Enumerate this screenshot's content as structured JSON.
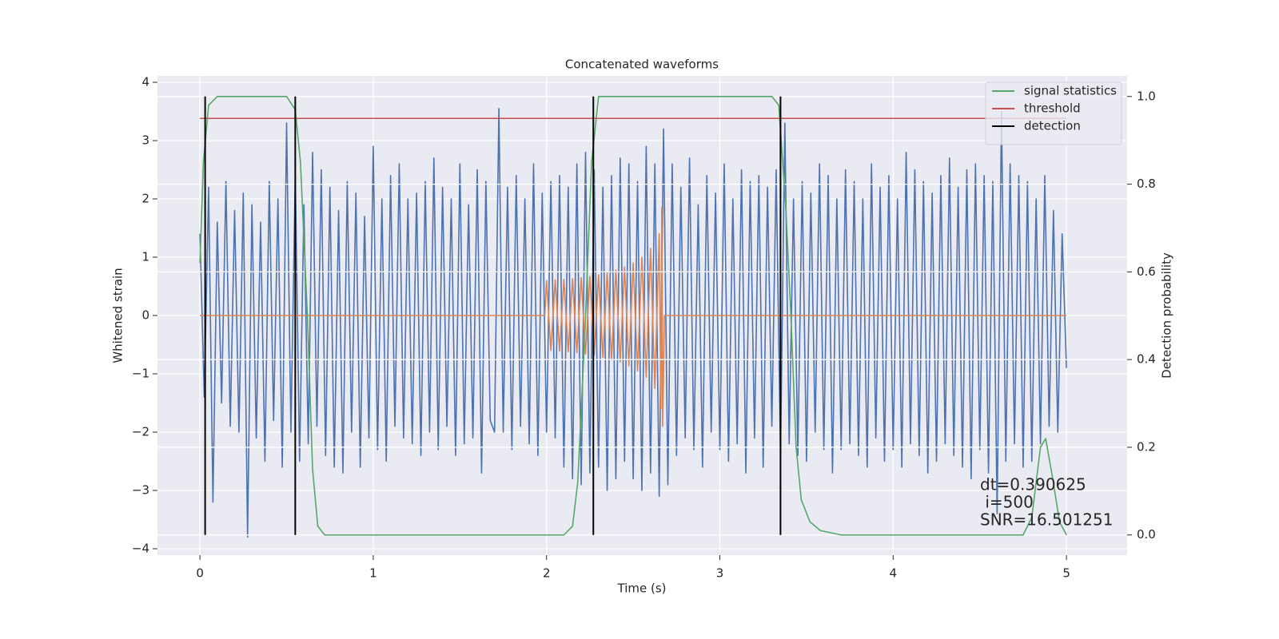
{
  "chart_data": {
    "type": "line",
    "title": "Concatenated waveforms",
    "x_label": "Time (s)",
    "y_label": "Whitened strain",
    "y2_label": "Detection probability",
    "xlim": [
      -0.245,
      5.35
    ],
    "ylim": [
      -4.11,
      4.11
    ],
    "y2lim": [
      -0.046,
      1.047
    ],
    "xticks": [
      0,
      1,
      2,
      3,
      4,
      5
    ],
    "yticks": [
      {
        "value": -4,
        "label": "−4"
      },
      {
        "value": -3,
        "label": "−3"
      },
      {
        "value": -2,
        "label": "−2"
      },
      {
        "value": -1,
        "label": "−1"
      },
      0,
      1,
      2,
      3,
      4
    ],
    "y2ticks": [
      {
        "value": 0,
        "label": "0.0"
      },
      0.2,
      0.4,
      0.6,
      0.8,
      {
        "value": 1,
        "label": "1.0"
      }
    ],
    "grid": true,
    "legend": "upper right",
    "series": [
      {
        "color": "#4c72b0",
        "x": [
          0,
          0.025,
          0.05,
          0.075,
          0.1,
          0.125,
          0.15,
          0.175,
          0.2,
          0.225,
          0.25,
          0.275,
          0.3,
          0.325,
          0.35,
          0.375,
          0.4,
          0.425,
          0.45,
          0.475,
          0.5,
          0.525,
          0.55,
          0.575,
          0.6,
          0.625,
          0.65,
          0.675,
          0.7,
          0.725,
          0.75,
          0.775,
          0.8,
          0.825,
          0.85,
          0.875,
          0.9,
          0.925,
          0.95,
          0.975,
          1,
          1.025,
          1.05,
          1.075,
          1.1,
          1.125,
          1.15,
          1.175,
          1.2,
          1.225,
          1.25,
          1.275,
          1.3,
          1.325,
          1.35,
          1.375,
          1.4,
          1.425,
          1.45,
          1.475,
          1.5,
          1.525,
          1.55,
          1.575,
          1.6,
          1.625,
          1.65,
          1.675,
          1.7,
          1.725,
          1.75,
          1.775,
          1.8,
          1.825,
          1.85,
          1.875,
          1.9,
          1.925,
          1.95,
          1.975,
          2,
          2.025,
          2.05,
          2.075,
          2.1,
          2.125,
          2.15,
          2.175,
          2.2,
          2.225,
          2.25,
          2.275,
          2.3,
          2.325,
          2.35,
          2.375,
          2.4,
          2.425,
          2.45,
          2.475,
          2.5,
          2.525,
          2.55,
          2.575,
          2.6,
          2.625,
          2.65,
          2.675,
          2.7,
          2.725,
          2.75,
          2.775,
          2.8,
          2.825,
          2.85,
          2.875,
          2.9,
          2.925,
          2.95,
          2.975,
          3,
          3.025,
          3.05,
          3.075,
          3.1,
          3.125,
          3.15,
          3.175,
          3.2,
          3.225,
          3.25,
          3.275,
          3.3,
          3.325,
          3.35,
          3.375,
          3.4,
          3.425,
          3.45,
          3.475,
          3.5,
          3.525,
          3.55,
          3.575,
          3.6,
          3.625,
          3.65,
          3.675,
          3.7,
          3.725,
          3.75,
          3.775,
          3.8,
          3.825,
          3.85,
          3.875,
          3.9,
          3.925,
          3.95,
          3.975,
          4,
          4.025,
          4.05,
          4.075,
          4.1,
          4.125,
          4.15,
          4.175,
          4.2,
          4.225,
          4.25,
          4.275,
          4.3,
          4.325,
          4.35,
          4.375,
          4.4,
          4.425,
          4.45,
          4.475,
          4.5,
          4.525,
          4.55,
          4.575,
          4.6,
          4.625,
          4.65,
          4.675,
          4.7,
          4.725,
          4.75,
          4.775,
          4.8,
          4.825,
          4.85,
          4.875,
          4.9,
          4.925,
          4.95,
          4.975,
          5
        ],
        "values": [
          1.4,
          -1.4,
          2.2,
          -3.2,
          1.6,
          -1.5,
          2.3,
          -1.9,
          1.8,
          -2.0,
          2.1,
          -3.8,
          1.9,
          -2.1,
          1.6,
          -2.5,
          2.3,
          -1.8,
          2.0,
          -2.6,
          3.3,
          -2.0,
          2.4,
          -2.5,
          1.9,
          -2.2,
          2.8,
          -1.9,
          2.5,
          -2.4,
          2.2,
          -2.6,
          1.8,
          -2.7,
          2.3,
          -2.0,
          2.1,
          -2.6,
          1.7,
          -2.1,
          2.9,
          -2.3,
          2.0,
          -2.5,
          2.4,
          -1.9,
          2.6,
          -2.1,
          2.0,
          -2.2,
          2.1,
          -2.4,
          2.3,
          -2.0,
          2.7,
          -2.3,
          2.2,
          -1.9,
          2.0,
          -2.4,
          2.6,
          -2.2,
          1.9,
          -2.1,
          2.5,
          -2.7,
          2.3,
          -1.8,
          -2.0,
          3.55,
          -2.0,
          2.2,
          -2.3,
          2.4,
          -1.9,
          2.0,
          -2.2,
          2.6,
          -2.4,
          2.1,
          -2.0,
          2.3,
          -2.1,
          2.4,
          -2.6,
          2.2,
          -2.8,
          2.6,
          -2.9,
          2.8,
          -2.7,
          2.5,
          -2.6,
          2.2,
          -3.0,
          2.4,
          -2.8,
          2.7,
          -2.5,
          2.6,
          -2.8,
          2.3,
          -3.0,
          2.9,
          -2.7,
          2.6,
          -3.1,
          3.2,
          -2.9,
          2.6,
          -2.4,
          2.2,
          -2.1,
          2.7,
          -2.3,
          1.9,
          -2.6,
          2.4,
          -2.0,
          2.1,
          -2.3,
          2.6,
          -2.5,
          2.0,
          -2.2,
          2.5,
          -2.7,
          2.3,
          -2.1,
          2.4,
          -2.6,
          2.2,
          -1.9,
          2.5,
          -2.4,
          3.3,
          -2.2,
          2.0,
          -2.4,
          2.3,
          -2.5,
          2.1,
          -2.0,
          2.6,
          -2.3,
          2.4,
          -2.7,
          2.0,
          -2.3,
          2.5,
          -2.2,
          2.3,
          -2.4,
          2.0,
          -2.6,
          2.6,
          -2.1,
          2.2,
          -2.5,
          2.4,
          -2.3,
          2.0,
          -2.6,
          2.8,
          -2.2,
          2.5,
          -2.4,
          2.3,
          -2.7,
          2.1,
          -2.5,
          2.4,
          -2.2,
          2.7,
          -2.4,
          2.2,
          -2.6,
          2.5,
          -2.8,
          2.6,
          -2.3,
          2.4,
          -2.7,
          2.3,
          -3.4,
          3.5,
          -2.5,
          2.6,
          -2.2,
          2.4,
          -2.6,
          2.3,
          -2.5,
          2.0,
          -2.2,
          2.4,
          -1.9,
          1.8,
          -2.0,
          1.4,
          -0.9
        ]
      },
      {
        "color": "#dd8452",
        "x": [
          0,
          1.99,
          2,
          2.025,
          2.05,
          2.075,
          2.1,
          2.125,
          2.15,
          2.175,
          2.2,
          2.225,
          2.25,
          2.275,
          2.3,
          2.325,
          2.35,
          2.375,
          2.4,
          2.425,
          2.45,
          2.475,
          2.5,
          2.525,
          2.55,
          2.575,
          2.6,
          2.625,
          2.65,
          2.66,
          2.665,
          2.67,
          2.68,
          5
        ],
        "values": [
          0,
          0,
          0.6,
          -0.6,
          0.61,
          -0.61,
          0.62,
          -0.62,
          0.63,
          -0.64,
          0.65,
          -0.66,
          0.67,
          -0.68,
          0.7,
          -0.72,
          0.74,
          -0.76,
          0.78,
          -0.8,
          0.83,
          -0.86,
          0.9,
          -0.95,
          1.0,
          -1.06,
          1.15,
          -1.25,
          1.4,
          -1.6,
          1.85,
          -1.9,
          0,
          0
        ]
      },
      {
        "name": "signal statistics",
        "color": "#55a868",
        "axis": "y2",
        "x": [
          0,
          0.02,
          0.05,
          0.1,
          0.5,
          0.55,
          0.58,
          0.62,
          0.65,
          0.68,
          0.72,
          2.1,
          2.15,
          2.18,
          2.22,
          2.26,
          2.3,
          3.3,
          3.34,
          3.38,
          3.41,
          3.44,
          3.47,
          3.52,
          3.58,
          3.7,
          4.75,
          4.8,
          4.85,
          4.88,
          4.92,
          4.96,
          5
        ],
        "values": [
          0.62,
          0.85,
          0.98,
          1.0,
          1.0,
          0.97,
          0.85,
          0.5,
          0.15,
          0.02,
          0.0,
          0.0,
          0.02,
          0.12,
          0.45,
          0.85,
          1.0,
          1.0,
          0.98,
          0.75,
          0.5,
          0.2,
          0.08,
          0.03,
          0.01,
          0.0,
          0.0,
          0.04,
          0.2,
          0.22,
          0.13,
          0.03,
          0.0
        ]
      },
      {
        "name": "threshold",
        "color": "#c44e52",
        "axis": "y2",
        "x": [
          0,
          5
        ],
        "values": [
          0.95,
          0.95
        ]
      }
    ],
    "detection": {
      "name": "detection",
      "color": "#000000",
      "axis": "y2",
      "x": [
        0.03,
        0.55,
        2.27,
        3.35
      ],
      "y_range": [
        0,
        1
      ]
    },
    "annotation": [
      "dt=0.390625",
      " i=500",
      "SNR=16.501251"
    ]
  }
}
